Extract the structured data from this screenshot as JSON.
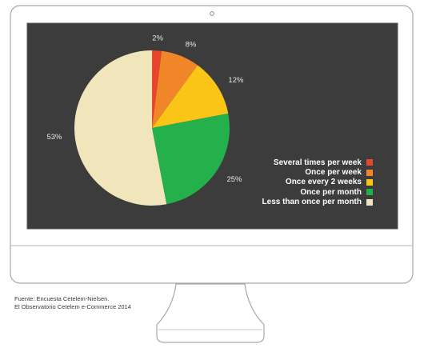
{
  "chart_data": {
    "type": "pie",
    "title": "",
    "categories": [
      "Several times per week",
      "Once per week",
      "Once every 2 weeks",
      "Once per month",
      "Less than once per month"
    ],
    "values": [
      2,
      8,
      12,
      25,
      53
    ],
    "value_labels": [
      "2%",
      "8%",
      "12%",
      "25%",
      "53%"
    ],
    "colors": [
      "#e8462a",
      "#f08628",
      "#fac517",
      "#24b04b",
      "#f1e6bb"
    ],
    "legend_position": "right",
    "start_angle": "12 o'clock, clockwise",
    "background": "#3c3c3c",
    "label_color": "#e6e6e6"
  },
  "source": {
    "line1": "Fuente: Encuesta Cetelem-Nielsen.",
    "line2": "El Observatorio Cetelem e-Commerce 2014"
  },
  "colors": {
    "monitor_frame": "#ffffff",
    "monitor_border": "#a8a8a8",
    "screen_border": "#555555"
  }
}
